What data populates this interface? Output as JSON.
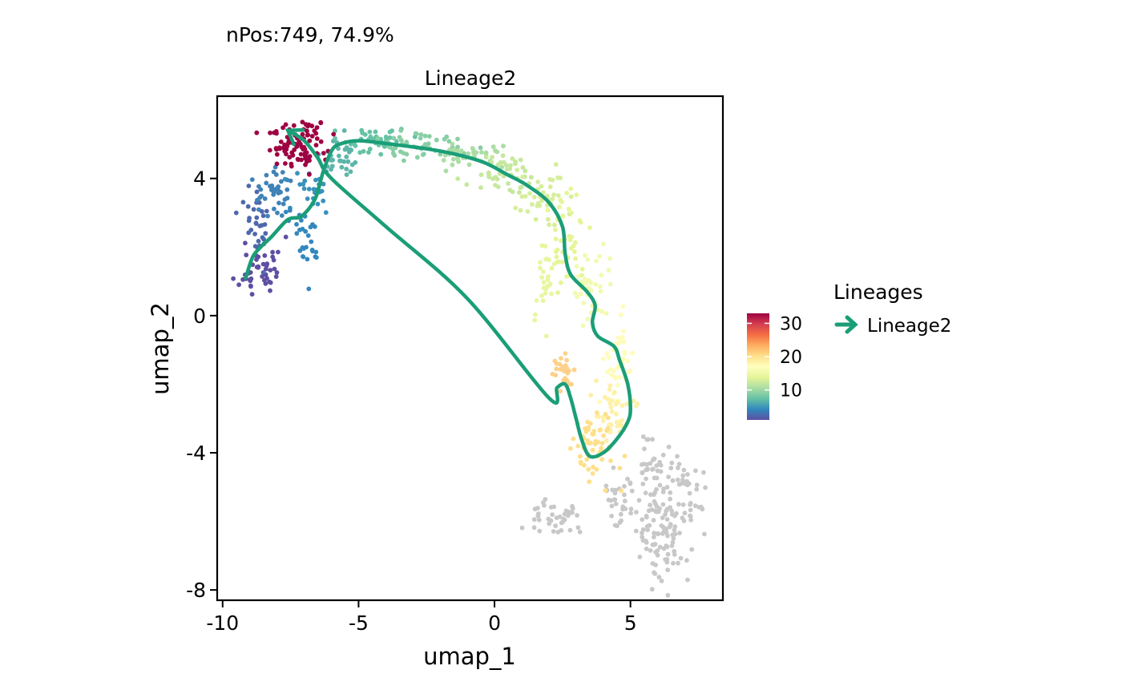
{
  "chart_data": {
    "type": "scatter",
    "subtitle": "nPos:749, 74.9%",
    "title": "Lineage2",
    "xlabel": "umap_1",
    "ylabel": "umap_2",
    "xlim": [
      -10.2,
      8.4
    ],
    "ylim": [
      -8.3,
      6.4
    ],
    "x_ticks": [
      -10,
      -5,
      0,
      5
    ],
    "y_ticks": [
      -8,
      -4,
      0,
      4
    ],
    "x_tick_labels": [
      "-10",
      "-5",
      "0",
      "5"
    ],
    "y_tick_labels": [
      "-8",
      "-4",
      "0",
      "4"
    ],
    "grid": false,
    "point_color_na": "#c8c8c8",
    "colorbar": {
      "title": "",
      "range": [
        1,
        33
      ],
      "ticks": [
        10,
        20,
        30
      ],
      "tick_labels": [
        "10",
        "20",
        "30"
      ],
      "palette": [
        "#5e4fa2",
        "#3288bd",
        "#66c2a5",
        "#abdda4",
        "#e6f598",
        "#ffffbf",
        "#fee08b",
        "#fdae61",
        "#f46d43",
        "#d53e4f",
        "#9e0142"
      ]
    },
    "legend": {
      "title": "Lineages",
      "position": "right",
      "items": [
        {
          "label": "Lineage2",
          "color": "#1b9e77"
        }
      ]
    },
    "clusters": [
      {
        "n": 45,
        "cx": -8.6,
        "cy": 1.4,
        "sx": 0.4,
        "sy": 0.45,
        "v": 1.5,
        "c": "#5e4fa2",
        "seed": 11
      },
      {
        "n": 30,
        "cx": -8.7,
        "cy": 2.8,
        "sx": 0.3,
        "sy": 0.5,
        "v": 2.5,
        "c": "#4f67ad",
        "seed": 12
      },
      {
        "n": 40,
        "cx": -8.1,
        "cy": 3.6,
        "sx": 0.35,
        "sy": 0.35,
        "v": 3.5,
        "c": "#3f83b8",
        "seed": 13
      },
      {
        "n": 30,
        "cx": -6.8,
        "cy": 2.4,
        "sx": 0.3,
        "sy": 0.5,
        "v": 4.5,
        "c": "#3288bd",
        "seed": 14
      },
      {
        "n": 25,
        "cx": -6.6,
        "cy": 3.8,
        "sx": 0.35,
        "sy": 0.35,
        "v": 5.5,
        "c": "#3a91bb",
        "seed": 15
      },
      {
        "n": 90,
        "cx": -7.2,
        "cy": 5.0,
        "sx": 0.5,
        "sy": 0.35,
        "v": 32,
        "c": "#9e0142",
        "seed": 16
      },
      {
        "n": 30,
        "cx": -5.6,
        "cy": 4.6,
        "sx": 0.3,
        "sy": 0.3,
        "v": 7,
        "c": "#5cb5a9",
        "seed": 17
      },
      {
        "n": 40,
        "cx": -4.5,
        "cy": 5.1,
        "sx": 0.6,
        "sy": 0.2,
        "v": 8,
        "c": "#66c2a5",
        "seed": 18
      },
      {
        "n": 50,
        "cx": -2.7,
        "cy": 5.0,
        "sx": 0.8,
        "sy": 0.2,
        "v": 9,
        "c": "#89cfa5",
        "seed": 19
      },
      {
        "n": 35,
        "cx": -1.0,
        "cy": 4.7,
        "sx": 0.6,
        "sy": 0.2,
        "v": 10,
        "c": "#abdda4",
        "seed": 20
      },
      {
        "n": 45,
        "cx": 0.5,
        "cy": 4.1,
        "sx": 0.6,
        "sy": 0.3,
        "v": 11,
        "c": "#c6e89e",
        "seed": 21
      },
      {
        "n": 40,
        "cx": 1.7,
        "cy": 3.4,
        "sx": 0.5,
        "sy": 0.4,
        "v": 12,
        "c": "#d6ee9b",
        "seed": 22
      },
      {
        "n": 45,
        "cx": 2.7,
        "cy": 2.2,
        "sx": 0.35,
        "sy": 0.6,
        "v": 13,
        "c": "#e6f598",
        "seed": 23
      },
      {
        "n": 25,
        "cx": 1.8,
        "cy": 0.8,
        "sx": 0.2,
        "sy": 0.6,
        "v": 13.5,
        "c": "#e9f6a0",
        "seed": 24
      },
      {
        "n": 40,
        "cx": 3.6,
        "cy": 0.7,
        "sx": 0.35,
        "sy": 0.5,
        "v": 15,
        "c": "#f2fab0",
        "seed": 25
      },
      {
        "n": 40,
        "cx": 4.6,
        "cy": -1.1,
        "sx": 0.3,
        "sy": 0.7,
        "v": 17,
        "c": "#fffcb9",
        "seed": 26
      },
      {
        "n": 40,
        "cx": 4.3,
        "cy": -2.8,
        "sx": 0.35,
        "sy": 0.5,
        "v": 19,
        "c": "#fef0a7",
        "seed": 27
      },
      {
        "n": 25,
        "cx": 2.6,
        "cy": -1.6,
        "sx": 0.2,
        "sy": 0.3,
        "v": 21,
        "c": "#fdd18a",
        "seed": 28
      },
      {
        "n": 55,
        "cx": 3.6,
        "cy": -3.8,
        "sx": 0.45,
        "sy": 0.5,
        "v": 20,
        "c": "#fee08b",
        "seed": 29
      },
      {
        "n": 40,
        "cx": 2.2,
        "cy": -5.9,
        "sx": 0.5,
        "sy": 0.3,
        "v": null,
        "c": "#c8c8c8",
        "seed": 30
      },
      {
        "n": 30,
        "cx": 4.5,
        "cy": -5.3,
        "sx": 0.35,
        "sy": 0.4,
        "v": null,
        "c": "#c8c8c8",
        "seed": 31
      },
      {
        "n": 120,
        "cx": 6.1,
        "cy": -6.1,
        "sx": 0.6,
        "sy": 0.85,
        "v": null,
        "c": "#c8c8c8",
        "seed": 32
      },
      {
        "n": 30,
        "cx": 7.0,
        "cy": -5.2,
        "sx": 0.35,
        "sy": 0.4,
        "v": null,
        "c": "#c8c8c8",
        "seed": 33
      },
      {
        "n": 30,
        "cx": 5.8,
        "cy": -4.3,
        "sx": 0.3,
        "sy": 0.4,
        "v": null,
        "c": "#c8c8c8",
        "seed": 34
      }
    ],
    "series": [
      {
        "name": "Lineage2",
        "color": "#1b9e77",
        "x": [
          -9.15,
          -8.9,
          -8.6,
          -8.2,
          -7.6,
          -7.1,
          -6.6,
          -6.3,
          -6.0,
          -5.7,
          -5.0,
          -3.8,
          -2.0,
          -0.5,
          0.5,
          1.2,
          2.0,
          2.5,
          2.6,
          2.8,
          3.4,
          3.7,
          3.6,
          3.8,
          4.4,
          4.6,
          4.9,
          5.0,
          4.9,
          4.5,
          4.0,
          3.5,
          3.2,
          3.0,
          2.8,
          2.6,
          2.3,
          2.0,
          -1.0,
          -4.0,
          -6.0,
          -6.5,
          -7.0,
          -7.6
        ],
        "y": [
          1.1,
          1.7,
          2.0,
          2.3,
          2.8,
          2.9,
          3.4,
          4.2,
          4.8,
          5.0,
          5.1,
          5.0,
          4.8,
          4.5,
          4.1,
          3.8,
          3.3,
          2.6,
          1.8,
          1.2,
          0.7,
          0.3,
          -0.2,
          -0.6,
          -0.9,
          -1.3,
          -2.0,
          -2.7,
          -3.1,
          -3.6,
          -4.0,
          -4.1,
          -3.6,
          -3.0,
          -2.4,
          -2.0,
          -2.1,
          -2.4,
          0.5,
          2.6,
          4.0,
          4.6,
          5.1,
          5.4
        ]
      }
    ]
  }
}
